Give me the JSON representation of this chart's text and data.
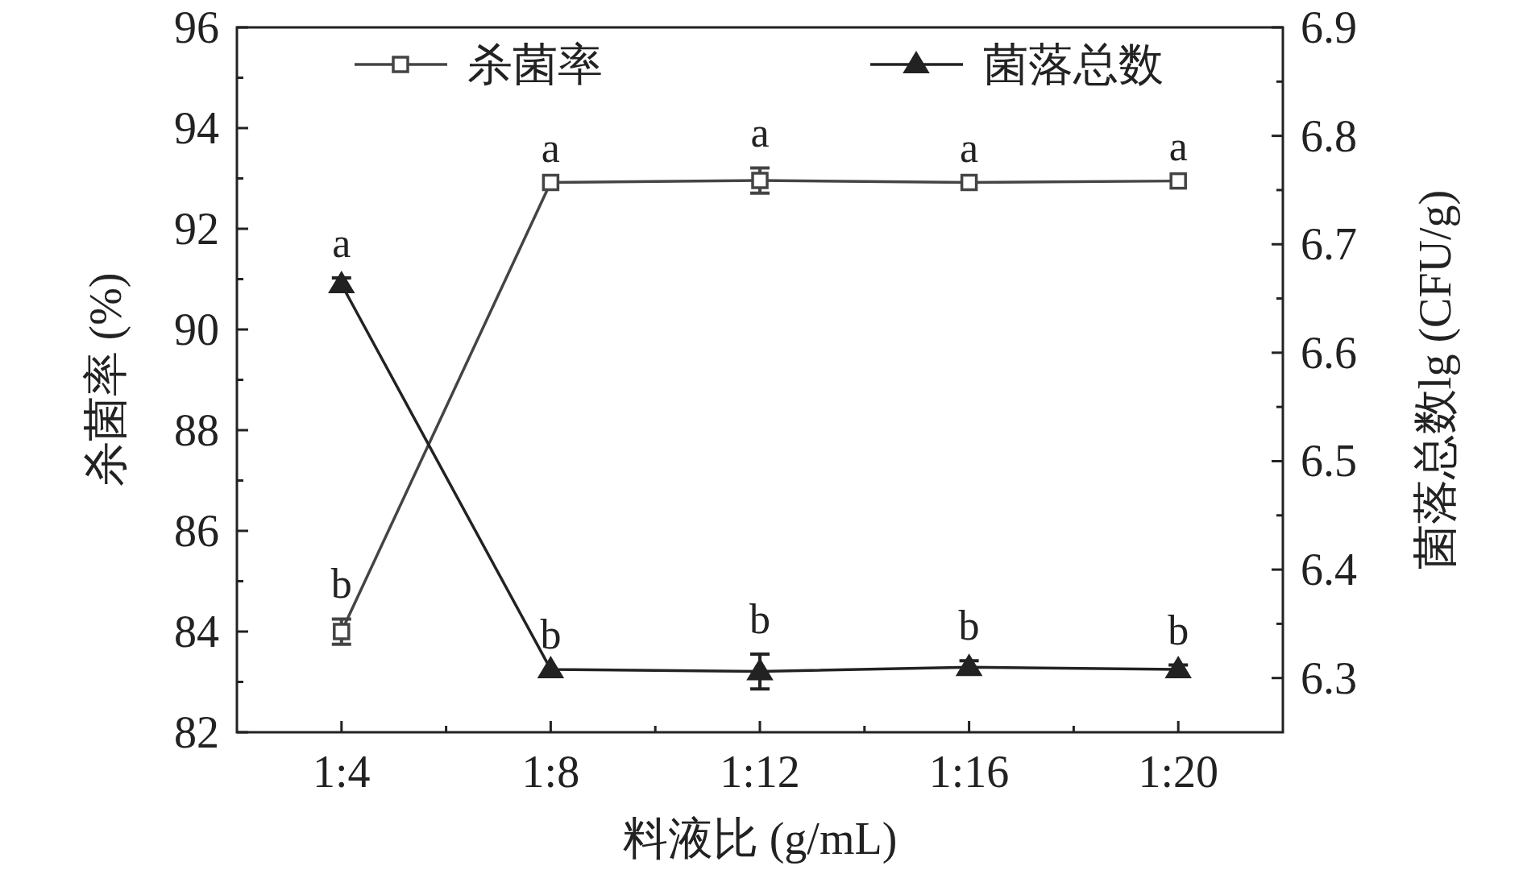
{
  "chart_data": {
    "type": "line",
    "xlabel": "料液比 (g/mL)",
    "ylabel": "杀菌率 (%)",
    "y2label": "菌落总数lg (CFU/g)",
    "categories": [
      "1:4",
      "1:8",
      "1:12",
      "1:16",
      "1:20"
    ],
    "series": [
      {
        "name": "杀菌率",
        "color": "#444444",
        "marker": "square",
        "values": [
          84.0,
          92.92,
          92.96,
          92.92,
          92.95
        ],
        "errors": [
          0.25,
          null,
          0.25,
          null,
          null
        ],
        "value_labels": [
          "b",
          "a",
          "a",
          "a",
          "a"
        ]
      },
      {
        "name": "菌落总数",
        "color": "#222222",
        "marker": "triangle",
        "axis": "y2",
        "values": [
          6.663,
          6.308,
          6.306,
          6.31,
          6.308
        ],
        "errors": [
          0.006,
          null,
          0.016,
          0.006,
          0.004
        ],
        "value_labels": [
          "a",
          "b",
          "b",
          "b",
          "b"
        ]
      }
    ],
    "ylim": [
      82,
      96
    ],
    "yticks": [
      82,
      84,
      86,
      88,
      90,
      92,
      94,
      96
    ],
    "y2lim": [
      6.25,
      6.9
    ],
    "y2ticks": [
      6.3,
      6.4,
      6.5,
      6.6,
      6.7,
      6.8,
      6.9
    ],
    "legend": "top",
    "grid": false
  }
}
